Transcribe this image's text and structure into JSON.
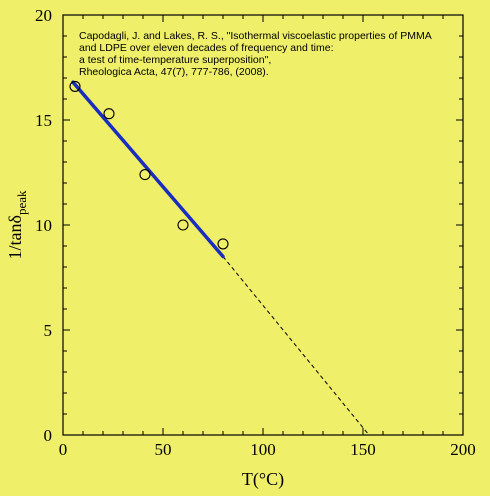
{
  "chart_data": {
    "type": "scatter",
    "xlabel": "T(°C)",
    "ylabel_main": "1/tanδ",
    "ylabel_sub": "peak",
    "xlim": [
      0,
      200
    ],
    "ylim": [
      0,
      20
    ],
    "xticks": [
      "0",
      "50",
      "100",
      "150",
      "200"
    ],
    "yticks": [
      "0",
      "5",
      "10",
      "15",
      "20"
    ],
    "grid": false,
    "points": [
      {
        "x": 6,
        "y": 16.6
      },
      {
        "x": 23,
        "y": 15.3
      },
      {
        "x": 41,
        "y": 12.4
      },
      {
        "x": 60,
        "y": 10.0
      },
      {
        "x": 80,
        "y": 9.1
      }
    ],
    "fit_line": {
      "x": [
        5,
        80
      ],
      "y": [
        16.8,
        8.5
      ]
    },
    "extrapolation": {
      "x": [
        80,
        153
      ],
      "y": [
        8.5,
        0
      ]
    },
    "annotation": [
      "Capodagli, J. and Lakes, R. S., \"Isothermal viscoelastic properties of PMMA",
      "and LDPE over eleven decades of frequency and time:",
      "a test of time-temperature superposition\",",
      "Rheologica Acta,  47(7), 777-786,  (2008)."
    ],
    "colors": {
      "background": "#efef6a",
      "fit_line": "#1a2dbf",
      "markers": "#000000"
    }
  }
}
